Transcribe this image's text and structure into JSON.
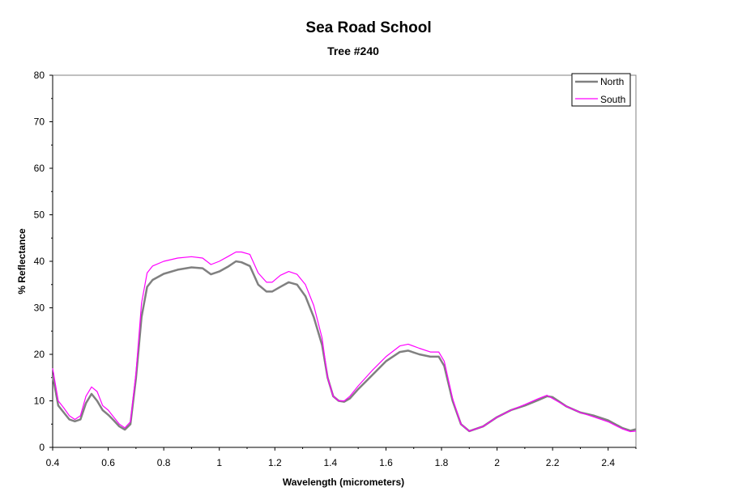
{
  "chart_data": {
    "type": "line",
    "title": "Sea Road School",
    "subtitle": "Tree #240",
    "xlabel": "Wavelength (micrometers)",
    "ylabel": "% Reflectance",
    "xlim": [
      0.4,
      2.5
    ],
    "ylim": [
      0,
      80
    ],
    "xticks": [
      0.4,
      0.6,
      0.8,
      1,
      1.2,
      1.4,
      1.6,
      1.8,
      2,
      2.2,
      2.4
    ],
    "xtick_labels": [
      "0.4",
      "0.6",
      "0.8",
      "1",
      "1.2",
      "1.4",
      "1.6",
      "1.8",
      "2",
      "2.2",
      "2.4"
    ],
    "yticks": [
      0,
      10,
      20,
      30,
      40,
      50,
      60,
      70,
      80
    ],
    "ytick_labels": [
      "0",
      "10",
      "20",
      "30",
      "40",
      "50",
      "60",
      "70",
      "80"
    ],
    "grid": false,
    "legend_position": "top-right",
    "series": [
      {
        "name": "North",
        "color": "#808080",
        "x": [
          0.4,
          0.42,
          0.44,
          0.46,
          0.48,
          0.5,
          0.52,
          0.54,
          0.56,
          0.58,
          0.6,
          0.62,
          0.64,
          0.66,
          0.68,
          0.7,
          0.72,
          0.74,
          0.76,
          0.8,
          0.85,
          0.9,
          0.94,
          0.97,
          1.0,
          1.03,
          1.06,
          1.08,
          1.11,
          1.14,
          1.17,
          1.19,
          1.22,
          1.25,
          1.28,
          1.31,
          1.34,
          1.37,
          1.39,
          1.41,
          1.43,
          1.45,
          1.47,
          1.5,
          1.55,
          1.6,
          1.65,
          1.68,
          1.72,
          1.76,
          1.79,
          1.81,
          1.84,
          1.87,
          1.9,
          1.95,
          2.0,
          2.05,
          2.1,
          2.15,
          2.18,
          2.2,
          2.25,
          2.3,
          2.35,
          2.4,
          2.45,
          2.48,
          2.5
        ],
        "values": [
          15.5,
          9.0,
          7.5,
          6.0,
          5.6,
          6.0,
          9.5,
          11.5,
          10.0,
          8.0,
          7.0,
          5.8,
          4.5,
          3.8,
          5.0,
          15.0,
          28.0,
          34.5,
          36.0,
          37.3,
          38.2,
          38.7,
          38.5,
          37.2,
          37.8,
          38.8,
          40.0,
          39.8,
          39.0,
          35.0,
          33.5,
          33.5,
          34.5,
          35.5,
          35.0,
          32.5,
          28.0,
          22.0,
          15.0,
          11.0,
          10.0,
          9.8,
          10.5,
          12.5,
          15.5,
          18.5,
          20.5,
          20.8,
          20.0,
          19.5,
          19.5,
          17.5,
          10.0,
          5.0,
          3.5,
          4.5,
          6.5,
          8.0,
          9.0,
          10.2,
          11.0,
          10.8,
          8.8,
          7.5,
          6.8,
          5.8,
          4.2,
          3.6,
          3.9
        ]
      },
      {
        "name": "South",
        "color": "#ff00ff",
        "x": [
          0.4,
          0.42,
          0.44,
          0.46,
          0.48,
          0.5,
          0.52,
          0.54,
          0.56,
          0.58,
          0.6,
          0.62,
          0.64,
          0.66,
          0.68,
          0.7,
          0.72,
          0.74,
          0.76,
          0.8,
          0.85,
          0.9,
          0.94,
          0.97,
          1.0,
          1.03,
          1.06,
          1.08,
          1.11,
          1.14,
          1.17,
          1.19,
          1.22,
          1.25,
          1.28,
          1.31,
          1.34,
          1.37,
          1.39,
          1.41,
          1.43,
          1.45,
          1.47,
          1.5,
          1.55,
          1.6,
          1.65,
          1.68,
          1.72,
          1.76,
          1.79,
          1.81,
          1.84,
          1.87,
          1.9,
          1.95,
          2.0,
          2.05,
          2.1,
          2.15,
          2.18,
          2.2,
          2.25,
          2.3,
          2.35,
          2.4,
          2.45,
          2.48,
          2.5
        ],
        "values": [
          17.0,
          10.0,
          8.5,
          6.8,
          6.0,
          6.8,
          11.0,
          13.0,
          12.0,
          9.0,
          8.0,
          6.5,
          5.0,
          4.2,
          5.5,
          16.0,
          31.0,
          37.5,
          39.0,
          40.0,
          40.7,
          41.0,
          40.7,
          39.3,
          40.0,
          41.0,
          42.0,
          42.0,
          41.5,
          37.5,
          35.5,
          35.5,
          37.0,
          37.8,
          37.2,
          35.0,
          30.5,
          23.5,
          15.0,
          11.0,
          10.0,
          10.0,
          11.0,
          13.2,
          16.5,
          19.5,
          21.8,
          22.2,
          21.3,
          20.5,
          20.5,
          18.5,
          10.5,
          5.0,
          3.5,
          4.5,
          6.5,
          8.0,
          9.2,
          10.5,
          11.2,
          10.5,
          8.8,
          7.5,
          6.5,
          5.5,
          4.0,
          3.4,
          3.5
        ]
      }
    ]
  }
}
